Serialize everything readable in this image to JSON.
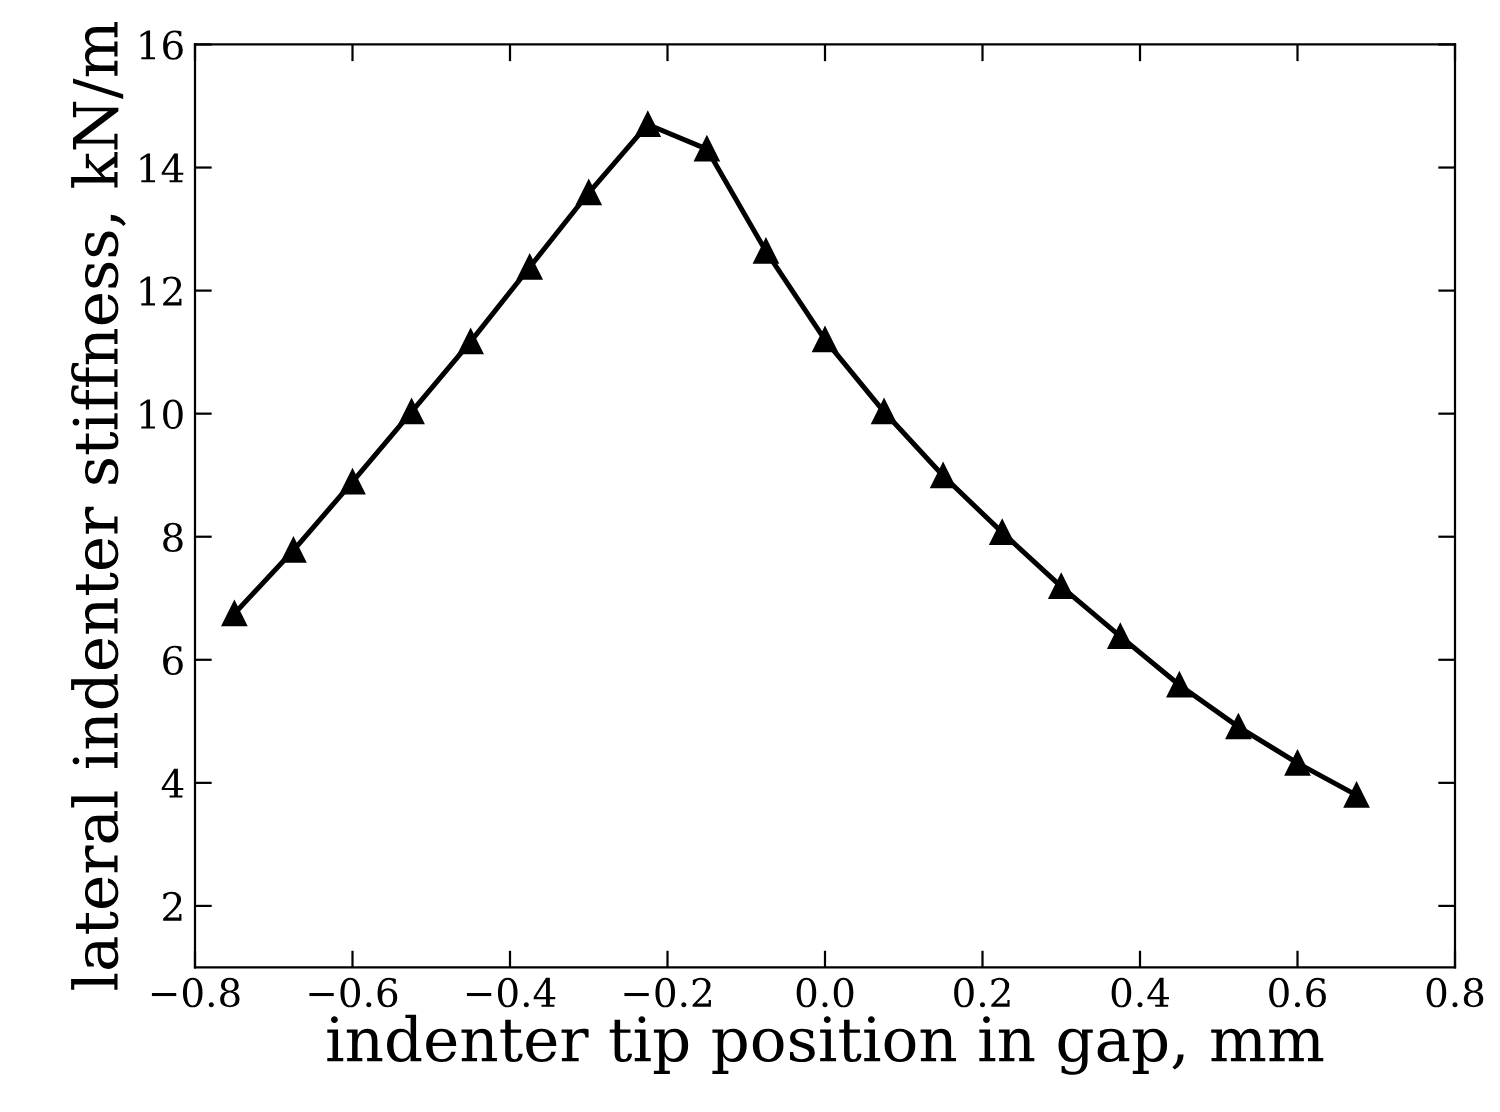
{
  "chart_data": {
    "type": "line",
    "xlabel": "indenter tip position in gap, mm",
    "ylabel": "lateral indenter stiffness, kN/m",
    "x": [
      -0.75,
      -0.675,
      -0.6,
      -0.525,
      -0.45,
      -0.375,
      -0.3,
      -0.225,
      -0.15,
      -0.075,
      0,
      0.075,
      0.15,
      0.225,
      0.3,
      0.375,
      0.45,
      0.525,
      0.6,
      0.675
    ],
    "series": [
      {
        "color": "#000000",
        "values": [
          6.75,
          7.78,
          8.89,
          10.03,
          11.17,
          12.38,
          13.59,
          14.7,
          14.3,
          12.64,
          11.2,
          10.03,
          8.99,
          8.07,
          7.19,
          6.38,
          5.59,
          4.91,
          4.32,
          3.8
        ]
      }
    ],
    "xlim": [
      -0.8,
      0.8
    ],
    "xticks": [
      {
        "value": -0.8,
        "label": "−0.8"
      },
      {
        "value": -0.6,
        "label": "−0.6"
      },
      {
        "value": -0.4,
        "label": "−0.4"
      },
      {
        "value": -0.2,
        "label": "−0.2"
      },
      {
        "value": 0,
        "label": "0.0"
      },
      {
        "value": 0.2,
        "label": "0.2"
      },
      {
        "value": 0.4,
        "label": "0.4"
      },
      {
        "value": 0.6,
        "label": "0.6"
      },
      {
        "value": 0.8,
        "label": "0.8"
      }
    ],
    "ylim": [
      1,
      16
    ],
    "yticks": [
      2,
      4,
      6,
      8,
      10,
      12,
      14,
      16
    ],
    "marker": "triangle",
    "line_style": "solid",
    "grid": false,
    "legend": false
  }
}
